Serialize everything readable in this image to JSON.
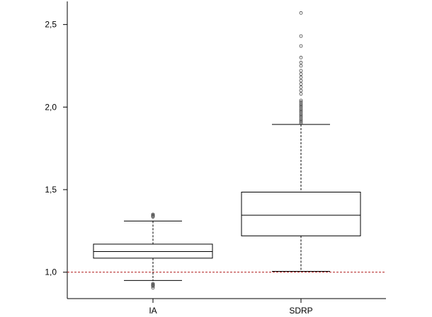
{
  "chart_data": {
    "type": "boxplot",
    "title": "",
    "xlabel": "",
    "ylabel": "",
    "ylim": [
      0.84,
      2.64
    ],
    "yticks": [
      1.0,
      1.5,
      2.0,
      2.5
    ],
    "ytick_labels": [
      "1,0",
      "1,5",
      "2,0",
      "2,5"
    ],
    "categories": [
      "IA",
      "SDRP"
    ],
    "reference_line": {
      "y": 1.0,
      "color": "#b22222",
      "style": "dashed"
    },
    "series": [
      {
        "category": "IA",
        "whisker_low": 0.95,
        "q1": 1.085,
        "median": 1.125,
        "q3": 1.17,
        "whisker_high": 1.31,
        "outliers": [
          1.335,
          1.34,
          1.345,
          1.35,
          0.93,
          0.925,
          0.92,
          0.915,
          0.905
        ]
      },
      {
        "category": "SDRP",
        "whisker_low": 1.005,
        "q1": 1.22,
        "median": 1.345,
        "q3": 1.485,
        "whisker_high": 1.895,
        "outliers": [
          2.57,
          2.43,
          2.37,
          2.3,
          2.27,
          2.25,
          2.22,
          2.2,
          2.18,
          2.16,
          2.14,
          2.12,
          2.1,
          2.08,
          2.04,
          2.03,
          2.02,
          2.01,
          2.0,
          1.99,
          1.98,
          1.97,
          1.96,
          1.95,
          1.94,
          1.93,
          1.92,
          1.91,
          1.9
        ]
      }
    ]
  }
}
